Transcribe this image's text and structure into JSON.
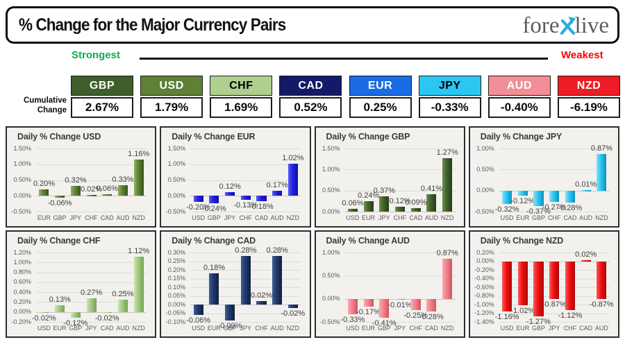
{
  "header": {
    "title": "% Change for the Major Currency Pairs",
    "logo": {
      "part1": "fore",
      "part2": "live",
      "x_color": "#29ace3",
      "text_color": "#5b5d60"
    }
  },
  "strength_bar": {
    "strongest": "Strongest",
    "weakest": "Weakest",
    "strongest_color": "#00b050",
    "weakest_color": "#fe0000",
    "row_label_line1": "Cumulative",
    "row_label_line2": "Change"
  },
  "currencies": [
    {
      "code": "GBP",
      "cumulative": "2.67%",
      "bg": "#3e5e2c",
      "fg": "#ffffff"
    },
    {
      "code": "USD",
      "cumulative": "1.79%",
      "bg": "#5e8136",
      "fg": "#ffffff"
    },
    {
      "code": "CHF",
      "cumulative": "1.69%",
      "bg": "#aecf8f",
      "fg": "#000000"
    },
    {
      "code": "CAD",
      "cumulative": "0.52%",
      "bg": "#141a66",
      "fg": "#ffffff"
    },
    {
      "code": "EUR",
      "cumulative": "0.25%",
      "bg": "#1b6ce4",
      "fg": "#ffffff"
    },
    {
      "code": "JPY",
      "cumulative": "-0.33%",
      "bg": "#2cc6f2",
      "fg": "#000000"
    },
    {
      "code": "AUD",
      "cumulative": "-0.40%",
      "bg": "#f28e96",
      "fg": "#ffffff"
    },
    {
      "code": "NZD",
      "cumulative": "-6.19%",
      "bg": "#ee1c25",
      "fg": "#ffffff"
    }
  ],
  "chart_data": [
    {
      "type": "bar",
      "title": "Daily % Change USD",
      "categories": [
        "EUR",
        "GBP",
        "JPY",
        "CHF",
        "CAD",
        "AUD",
        "NZD"
      ],
      "values": [
        0.2,
        -0.06,
        0.32,
        0.02,
        0.06,
        0.33,
        1.16
      ],
      "labels": [
        "0.20%",
        "-0.06%",
        "0.32%",
        "0.02%",
        "0.06%",
        "0.33%",
        "1.16%"
      ],
      "ylim": [
        -0.5,
        1.5
      ],
      "grid": true,
      "legend": false,
      "yticks": [
        {
          "v": 1.5,
          "label": "1.50%"
        },
        {
          "v": 1.0,
          "label": "1.00%"
        },
        {
          "v": 0.5,
          "label": "0.50%"
        },
        {
          "v": 0.0,
          "label": "0.00%"
        },
        {
          "v": -0.5,
          "label": "-0.50%"
        }
      ],
      "bar": {
        "light": "#8fb360",
        "base": "#5e8136",
        "dark": "#3a521f"
      }
    },
    {
      "type": "bar",
      "title": "Daily % Change EUR",
      "categories": [
        "USD",
        "GBP",
        "JPY",
        "CHF",
        "CAD",
        "AUD",
        "NZD"
      ],
      "values": [
        -0.2,
        -0.24,
        0.12,
        -0.13,
        -0.18,
        0.17,
        1.02
      ],
      "labels": [
        "-0.20%",
        "-0.24%",
        "0.12%",
        "-0.13%",
        "-0.18%",
        "0.17%",
        "1.02%"
      ],
      "ylim": [
        -0.5,
        1.5
      ],
      "grid": true,
      "legend": false,
      "yticks": [
        {
          "v": 1.5,
          "label": "1.50%"
        },
        {
          "v": 1.0,
          "label": "1.00%"
        },
        {
          "v": 0.5,
          "label": "0.50%"
        },
        {
          "v": 0.0,
          "label": "0.00%"
        },
        {
          "v": -0.5,
          "label": "-0.50%"
        }
      ],
      "bar": {
        "light": "#5a5af8",
        "base": "#2121e0",
        "dark": "#0d0da6"
      }
    },
    {
      "type": "bar",
      "title": "Daily % Change GBP",
      "categories": [
        "USD",
        "EUR",
        "JPY",
        "CHF",
        "CAD",
        "AUD",
        "NZD"
      ],
      "values": [
        0.06,
        0.24,
        0.37,
        0.12,
        0.09,
        0.41,
        1.27
      ],
      "labels": [
        "0.06%",
        "0.24%",
        "0.37%",
        "0.12%",
        "0.09%",
        "0.41%",
        "1.27%"
      ],
      "ylim": [
        0.0,
        1.5
      ],
      "grid": true,
      "legend": false,
      "yticks": [
        {
          "v": 1.5,
          "label": "1.50%"
        },
        {
          "v": 1.0,
          "label": "1.00%"
        },
        {
          "v": 0.5,
          "label": "0.50%"
        },
        {
          "v": 0.0,
          "label": "0.00%"
        }
      ],
      "bar": {
        "light": "#6c8f48",
        "base": "#41612e",
        "dark": "#253c17"
      }
    },
    {
      "type": "bar",
      "title": "Daily % Change JPY",
      "categories": [
        "USD",
        "EUR",
        "GBP",
        "CHF",
        "CAD",
        "AUD",
        "NZD"
      ],
      "values": [
        -0.32,
        -0.12,
        -0.37,
        -0.27,
        -0.28,
        0.01,
        0.87
      ],
      "labels": [
        "-0.32%",
        "-0.12%",
        "-0.37%",
        "-0.27%",
        "-0.28%",
        "0.01%",
        "0.87%"
      ],
      "ylim": [
        -0.5,
        1.0
      ],
      "grid": true,
      "legend": false,
      "yticks": [
        {
          "v": 1.0,
          "label": "1.00%"
        },
        {
          "v": 0.5,
          "label": "0.50%"
        },
        {
          "v": 0.0,
          "label": "0.00%"
        },
        {
          "v": -0.5,
          "label": "-0.50%"
        }
      ],
      "bar": {
        "light": "#8ae1f8",
        "base": "#2ac5f0",
        "dark": "#0d92bb"
      }
    },
    {
      "type": "bar",
      "title": "Daily % Change CHF",
      "categories": [
        "USD",
        "EUR",
        "GBP",
        "JPY",
        "CAD",
        "AUD",
        "NZD"
      ],
      "values": [
        -0.02,
        0.13,
        -0.12,
        0.27,
        -0.02,
        0.25,
        1.12
      ],
      "labels": [
        "-0.02%",
        "0.13%",
        "-0.12%",
        "0.27%",
        "-0.02%",
        "0.25%",
        "1.12%"
      ],
      "ylim": [
        -0.2,
        1.2
      ],
      "grid": true,
      "legend": false,
      "yticks": [
        {
          "v": 1.2,
          "label": "1.20%"
        },
        {
          "v": 1.0,
          "label": "1.00%"
        },
        {
          "v": 0.8,
          "label": "0.80%"
        },
        {
          "v": 0.6,
          "label": "0.60%"
        },
        {
          "v": 0.4,
          "label": "0.40%"
        },
        {
          "v": 0.2,
          "label": "0.20%"
        },
        {
          "v": 0.0,
          "label": "0.00%"
        },
        {
          "v": -0.2,
          "label": "-0.20%"
        }
      ],
      "bar": {
        "light": "#cde4b2",
        "base": "#a0c97e",
        "dark": "#76a254"
      }
    },
    {
      "type": "bar",
      "title": "Daily % Change CAD",
      "categories": [
        "USD",
        "EUR",
        "GBP",
        "JPY",
        "CHF",
        "AUD",
        "NZD"
      ],
      "values": [
        -0.06,
        0.18,
        -0.09,
        0.28,
        0.02,
        0.28,
        -0.02
      ],
      "labels": [
        "-0.06%",
        "0.18%",
        "-0.09%",
        "0.28%",
        "0.02%",
        "0.28%",
        "-0.02%"
      ],
      "ylim": [
        -0.1,
        0.3
      ],
      "grid": true,
      "legend": false,
      "yticks": [
        {
          "v": 0.3,
          "label": "0.30%"
        },
        {
          "v": 0.25,
          "label": "0.25%"
        },
        {
          "v": 0.2,
          "label": "0.20%"
        },
        {
          "v": 0.15,
          "label": "0.15%"
        },
        {
          "v": 0.1,
          "label": "0.10%"
        },
        {
          "v": 0.05,
          "label": "0.05%"
        },
        {
          "v": 0.0,
          "label": "0.00%"
        },
        {
          "v": -0.05,
          "label": "-0.05%"
        },
        {
          "v": -0.1,
          "label": "-0.10%"
        }
      ],
      "bar": {
        "light": "#3c5f94",
        "base": "#20386a",
        "dark": "#101f3e"
      }
    },
    {
      "type": "bar",
      "title": "Daily % Change AUD",
      "categories": [
        "USD",
        "EUR",
        "GBP",
        "JPY",
        "CHF",
        "CAD",
        "NZD"
      ],
      "values": [
        -0.33,
        -0.17,
        -0.41,
        -0.01,
        -0.25,
        -0.28,
        0.87
      ],
      "labels": [
        "-0.33%",
        "-0.17%",
        "-0.41%",
        "-0.01%",
        "-0.25%",
        "-0.28%",
        "0.87%"
      ],
      "ylim": [
        -0.5,
        1.0
      ],
      "grid": true,
      "legend": false,
      "yticks": [
        {
          "v": 1.0,
          "label": "1.00%"
        },
        {
          "v": 0.5,
          "label": "0.50%"
        },
        {
          "v": 0.0,
          "label": "0.00%"
        },
        {
          "v": -0.5,
          "label": "-0.50%"
        }
      ],
      "bar": {
        "light": "#f8a9b0",
        "base": "#ef828c",
        "dark": "#d4535e"
      }
    },
    {
      "type": "bar",
      "title": "Daily % Change NZD",
      "categories": [
        "USD",
        "EUR",
        "GBP",
        "JPY",
        "CHF",
        "CAD",
        "AUD"
      ],
      "values": [
        -1.16,
        -1.02,
        -1.27,
        -0.87,
        -1.12,
        0.02,
        -0.87
      ],
      "labels": [
        "-1.16%",
        "-1.02%",
        "-1.27%",
        "-0.87%",
        "-1.12%",
        "0.02%",
        "-0.87%"
      ],
      "ylim": [
        -1.4,
        0.2
      ],
      "grid": true,
      "legend": false,
      "yticks": [
        {
          "v": 0.2,
          "label": "0.20%"
        },
        {
          "v": 0.0,
          "label": "0.00%"
        },
        {
          "v": -0.2,
          "label": "-0.20%"
        },
        {
          "v": -0.4,
          "label": "-0.40%"
        },
        {
          "v": -0.6,
          "label": "-0.60%"
        },
        {
          "v": -0.8,
          "label": "-0.80%"
        },
        {
          "v": -1.0,
          "label": "-1.00%"
        },
        {
          "v": -1.2,
          "label": "-1.20%"
        },
        {
          "v": -1.4,
          "label": "-1.40%"
        }
      ],
      "bar": {
        "light": "#fb5a5a",
        "base": "#ee1111",
        "dark": "#ad0606"
      }
    }
  ]
}
